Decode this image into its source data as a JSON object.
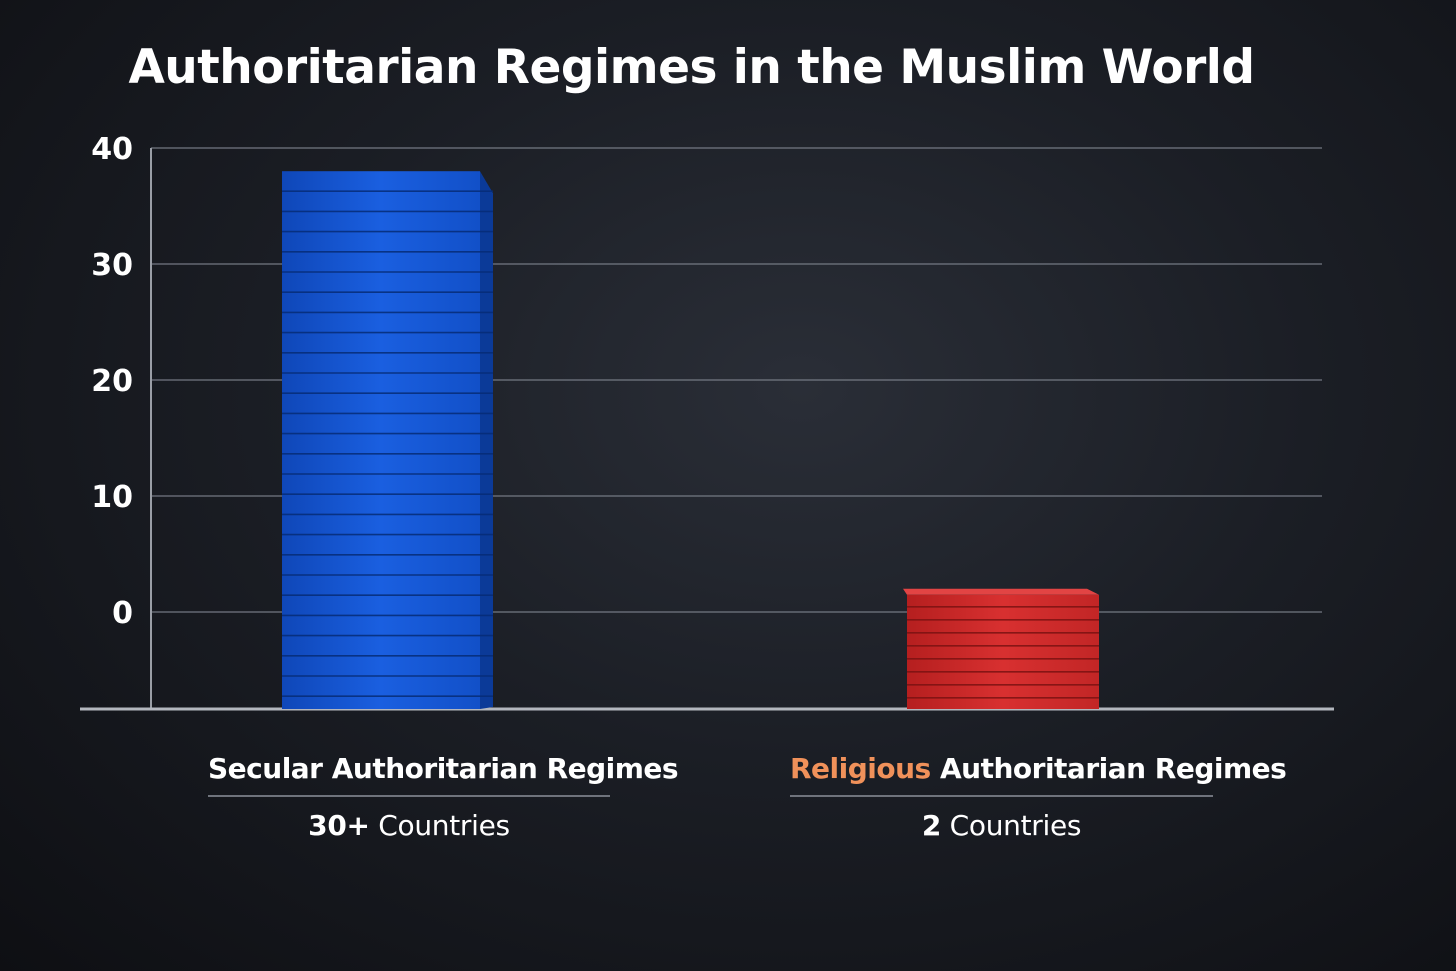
{
  "chart_data": {
    "type": "bar",
    "title": "Authoritarian Regimes in the Muslim World",
    "xlabel": "",
    "ylabel": "",
    "ylim": [
      -8,
      40
    ],
    "yticks": [
      40,
      30,
      20,
      10,
      0
    ],
    "grid": true,
    "categories": [
      {
        "label_accent": "",
        "label_main": "Secular Authoritarian Regimes",
        "count_value": "30+",
        "count_unit": "Countries",
        "value": 38,
        "color": "#1456d6"
      },
      {
        "label_accent": "Religious",
        "label_main": "Authoritarian Regimes",
        "count_value": "2",
        "count_unit": "Countries",
        "value": 2,
        "color": "#d42a2a"
      }
    ],
    "accent_color": "#f0915a"
  }
}
